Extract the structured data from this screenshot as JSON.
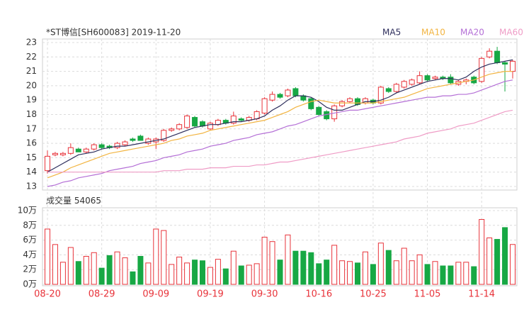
{
  "chart_data": {
    "type": "candlestick",
    "title": "*ST博信[SH600083] 2019-11-20",
    "categories": [
      "08-20",
      null,
      null,
      null,
      null,
      null,
      null,
      "08-29",
      null,
      null,
      null,
      null,
      null,
      null,
      "09-09",
      null,
      null,
      null,
      null,
      null,
      null,
      "09-19",
      null,
      null,
      null,
      null,
      null,
      null,
      "09-30",
      null,
      null,
      null,
      null,
      null,
      null,
      "10-16",
      null,
      null,
      null,
      null,
      null,
      null,
      "10-25",
      null,
      null,
      null,
      null,
      null,
      null,
      "11-05",
      null,
      null,
      null,
      null,
      null,
      null,
      "11-14",
      null,
      null,
      null,
      null
    ],
    "open": [
      14.1,
      15.2,
      15.2,
      15.3,
      15.6,
      15.4,
      15.6,
      15.9,
      15.8,
      15.7,
      15.9,
      16.3,
      16.5,
      16.0,
      16.1,
      16.2,
      16.9,
      17.0,
      17.1,
      17.8,
      17.5,
      17.0,
      17.3,
      17.6,
      17.4,
      17.7,
      17.6,
      17.7,
      18.1,
      19.0,
      19.4,
      19.3,
      19.8,
      19.3,
      19.1,
      18.5,
      18.2,
      17.7,
      18.6,
      18.9,
      19.1,
      18.8,
      19.0,
      18.8,
      19.8,
      19.6,
      19.9,
      20.1,
      20.2,
      20.7,
      20.5,
      20.6,
      20.6,
      20.1,
      20.3,
      20.6,
      20.3,
      22.0,
      22.4,
      21.6,
      21.0
    ],
    "high": [
      15.5,
      15.4,
      15.4,
      16.0,
      15.7,
      15.7,
      16.0,
      16.0,
      15.9,
      16.1,
      16.2,
      16.4,
      16.6,
      16.4,
      16.4,
      17.0,
      17.1,
      17.4,
      18.0,
      17.9,
      17.6,
      17.5,
      17.7,
      17.7,
      18.2,
      17.8,
      17.9,
      18.3,
      19.2,
      19.6,
      19.5,
      19.8,
      19.9,
      19.4,
      19.2,
      18.6,
      18.3,
      18.7,
      19.0,
      19.2,
      19.2,
      19.2,
      19.1,
      20.0,
      19.9,
      20.2,
      20.4,
      20.5,
      21.0,
      20.8,
      20.7,
      20.7,
      20.8,
      20.4,
      20.5,
      20.7,
      22.0,
      22.6,
      22.7,
      21.7,
      21.8
    ],
    "low": [
      13.9,
      15.1,
      15.1,
      15.2,
      15.4,
      15.3,
      15.5,
      15.6,
      15.6,
      15.6,
      15.8,
      16.1,
      16.2,
      15.9,
      15.6,
      16.1,
      16.8,
      16.9,
      17.0,
      17.1,
      17.1,
      16.9,
      17.2,
      17.3,
      17.3,
      17.5,
      17.5,
      17.6,
      18.0,
      18.9,
      19.1,
      19.2,
      19.2,
      18.9,
      18.3,
      17.9,
      17.6,
      17.5,
      18.5,
      18.8,
      18.6,
      18.7,
      18.7,
      18.7,
      19.5,
      19.5,
      19.8,
      20.0,
      20.1,
      20.3,
      20.4,
      20.4,
      20.1,
      20.0,
      20.1,
      20.1,
      20.2,
      21.9,
      21.5,
      19.6,
      20.5
    ],
    "close": [
      15.1,
      15.3,
      15.3,
      15.7,
      15.4,
      15.6,
      15.9,
      15.7,
      15.7,
      16.0,
      16.1,
      16.2,
      16.2,
      16.3,
      16.3,
      16.9,
      17.0,
      17.3,
      17.9,
      17.2,
      17.2,
      17.4,
      17.6,
      17.4,
      17.9,
      17.6,
      17.8,
      18.2,
      19.1,
      19.4,
      19.2,
      19.7,
      19.3,
      19.0,
      18.4,
      18.0,
      17.7,
      18.6,
      18.9,
      19.1,
      18.7,
      19.1,
      18.8,
      19.9,
      19.6,
      20.1,
      20.3,
      20.4,
      20.7,
      20.4,
      20.6,
      20.5,
      20.2,
      20.3,
      20.4,
      20.2,
      21.9,
      22.4,
      21.6,
      21.5,
      21.7
    ],
    "up_color": "#e8333a",
    "down_color": "#17a844",
    "series": [
      {
        "name": "MA5",
        "color": "#2e2e5c",
        "values": [
          14.0,
          14.3,
          14.6,
          14.9,
          15.2,
          15.3,
          15.4,
          15.6,
          15.7,
          15.8,
          15.8,
          15.9,
          16.0,
          16.1,
          16.2,
          16.3,
          16.5,
          16.7,
          16.9,
          17.1,
          17.2,
          17.3,
          17.3,
          17.4,
          17.5,
          17.5,
          17.6,
          17.7,
          17.9,
          18.3,
          18.6,
          19.0,
          19.3,
          19.3,
          19.2,
          18.9,
          18.5,
          18.3,
          18.3,
          18.5,
          18.7,
          18.9,
          18.9,
          19.0,
          19.2,
          19.5,
          19.7,
          19.9,
          20.1,
          20.3,
          20.4,
          20.5,
          20.5,
          20.4,
          20.6,
          21.0,
          21.3,
          21.5,
          21.6,
          21.7,
          21.8
        ]
      },
      {
        "name": "MA10",
        "color": "#f2b441",
        "values": [
          13.6,
          13.8,
          14.0,
          14.3,
          14.5,
          14.7,
          14.9,
          15.1,
          15.3,
          15.4,
          15.5,
          15.6,
          15.7,
          15.8,
          15.9,
          16.0,
          16.2,
          16.3,
          16.5,
          16.6,
          16.7,
          16.9,
          17.0,
          17.1,
          17.2,
          17.3,
          17.4,
          17.5,
          17.6,
          17.8,
          18.0,
          18.2,
          18.5,
          18.7,
          18.9,
          19.0,
          18.9,
          18.8,
          18.8,
          18.8,
          18.8,
          18.8,
          18.8,
          18.9,
          19.0,
          19.1,
          19.2,
          19.4,
          19.6,
          19.8,
          19.9,
          20.0,
          20.1,
          20.2,
          20.3,
          20.4,
          20.6,
          20.8,
          20.9,
          21.0,
          21.0
        ]
      },
      {
        "name": "MA20",
        "color": "#b46fd6",
        "values": [
          13.0,
          13.1,
          13.3,
          13.4,
          13.6,
          13.7,
          13.8,
          13.9,
          14.1,
          14.2,
          14.3,
          14.4,
          14.6,
          14.7,
          14.8,
          15.0,
          15.1,
          15.2,
          15.4,
          15.5,
          15.6,
          15.8,
          15.9,
          16.0,
          16.2,
          16.3,
          16.4,
          16.6,
          16.7,
          16.8,
          17.0,
          17.2,
          17.3,
          17.5,
          17.7,
          17.9,
          18.0,
          18.1,
          18.2,
          18.3,
          18.3,
          18.4,
          18.5,
          18.6,
          18.7,
          18.8,
          18.9,
          19.0,
          19.1,
          19.2,
          19.2,
          19.3,
          19.3,
          19.4,
          19.4,
          19.5,
          19.7,
          19.9,
          20.1,
          20.3,
          20.4
        ]
      },
      {
        "name": "MA60",
        "color": "#ef9cc6",
        "values": [
          14.0,
          14.0,
          14.0,
          14.0,
          14.0,
          14.0,
          14.0,
          14.0,
          14.0,
          14.0,
          14.0,
          14.0,
          14.0,
          14.0,
          14.0,
          14.1,
          14.1,
          14.1,
          14.2,
          14.2,
          14.2,
          14.3,
          14.3,
          14.3,
          14.4,
          14.4,
          14.4,
          14.5,
          14.5,
          14.6,
          14.7,
          14.7,
          14.8,
          14.9,
          15.0,
          15.1,
          15.2,
          15.3,
          15.4,
          15.5,
          15.6,
          15.7,
          15.8,
          15.9,
          16.0,
          16.1,
          16.3,
          16.4,
          16.5,
          16.7,
          16.8,
          16.9,
          17.0,
          17.2,
          17.3,
          17.4,
          17.6,
          17.8,
          18.0,
          18.2,
          18.3
        ]
      }
    ],
    "ylim": [
      13,
      23
    ],
    "yticks": [
      13,
      14,
      15,
      16,
      17,
      18,
      19,
      20,
      21,
      22,
      23
    ],
    "grid": true,
    "volume": {
      "label": "成交量",
      "latest": 54065,
      "values": [
        7.5,
        5.4,
        3.0,
        5.0,
        3.1,
        3.8,
        4.3,
        2.2,
        3.9,
        4.4,
        3.6,
        1.7,
        3.8,
        2.9,
        7.5,
        7.3,
        2.7,
        3.7,
        2.9,
        3.3,
        3.2,
        2.3,
        3.4,
        2.1,
        4.5,
        2.5,
        2.6,
        2.8,
        6.4,
        5.8,
        3.3,
        6.7,
        4.5,
        4.5,
        4.3,
        2.8,
        3.3,
        5.3,
        3.2,
        3.1,
        2.9,
        4.4,
        2.7,
        5.6,
        4.6,
        3.2,
        4.9,
        3.2,
        4.0,
        2.7,
        3.1,
        2.5,
        2.5,
        3.0,
        3.0,
        2.4,
        8.8,
        6.3,
        6.1,
        7.7,
        5.4065
      ],
      "ylim": [
        0,
        10
      ],
      "yticks": [
        {
          "value": 0,
          "label": "0万"
        },
        {
          "value": 2,
          "label": "2万"
        },
        {
          "value": 4,
          "label": "4万"
        },
        {
          "value": 6,
          "label": "6万"
        },
        {
          "value": 8,
          "label": "8万"
        },
        {
          "value": 10,
          "label": "10万"
        }
      ]
    }
  }
}
